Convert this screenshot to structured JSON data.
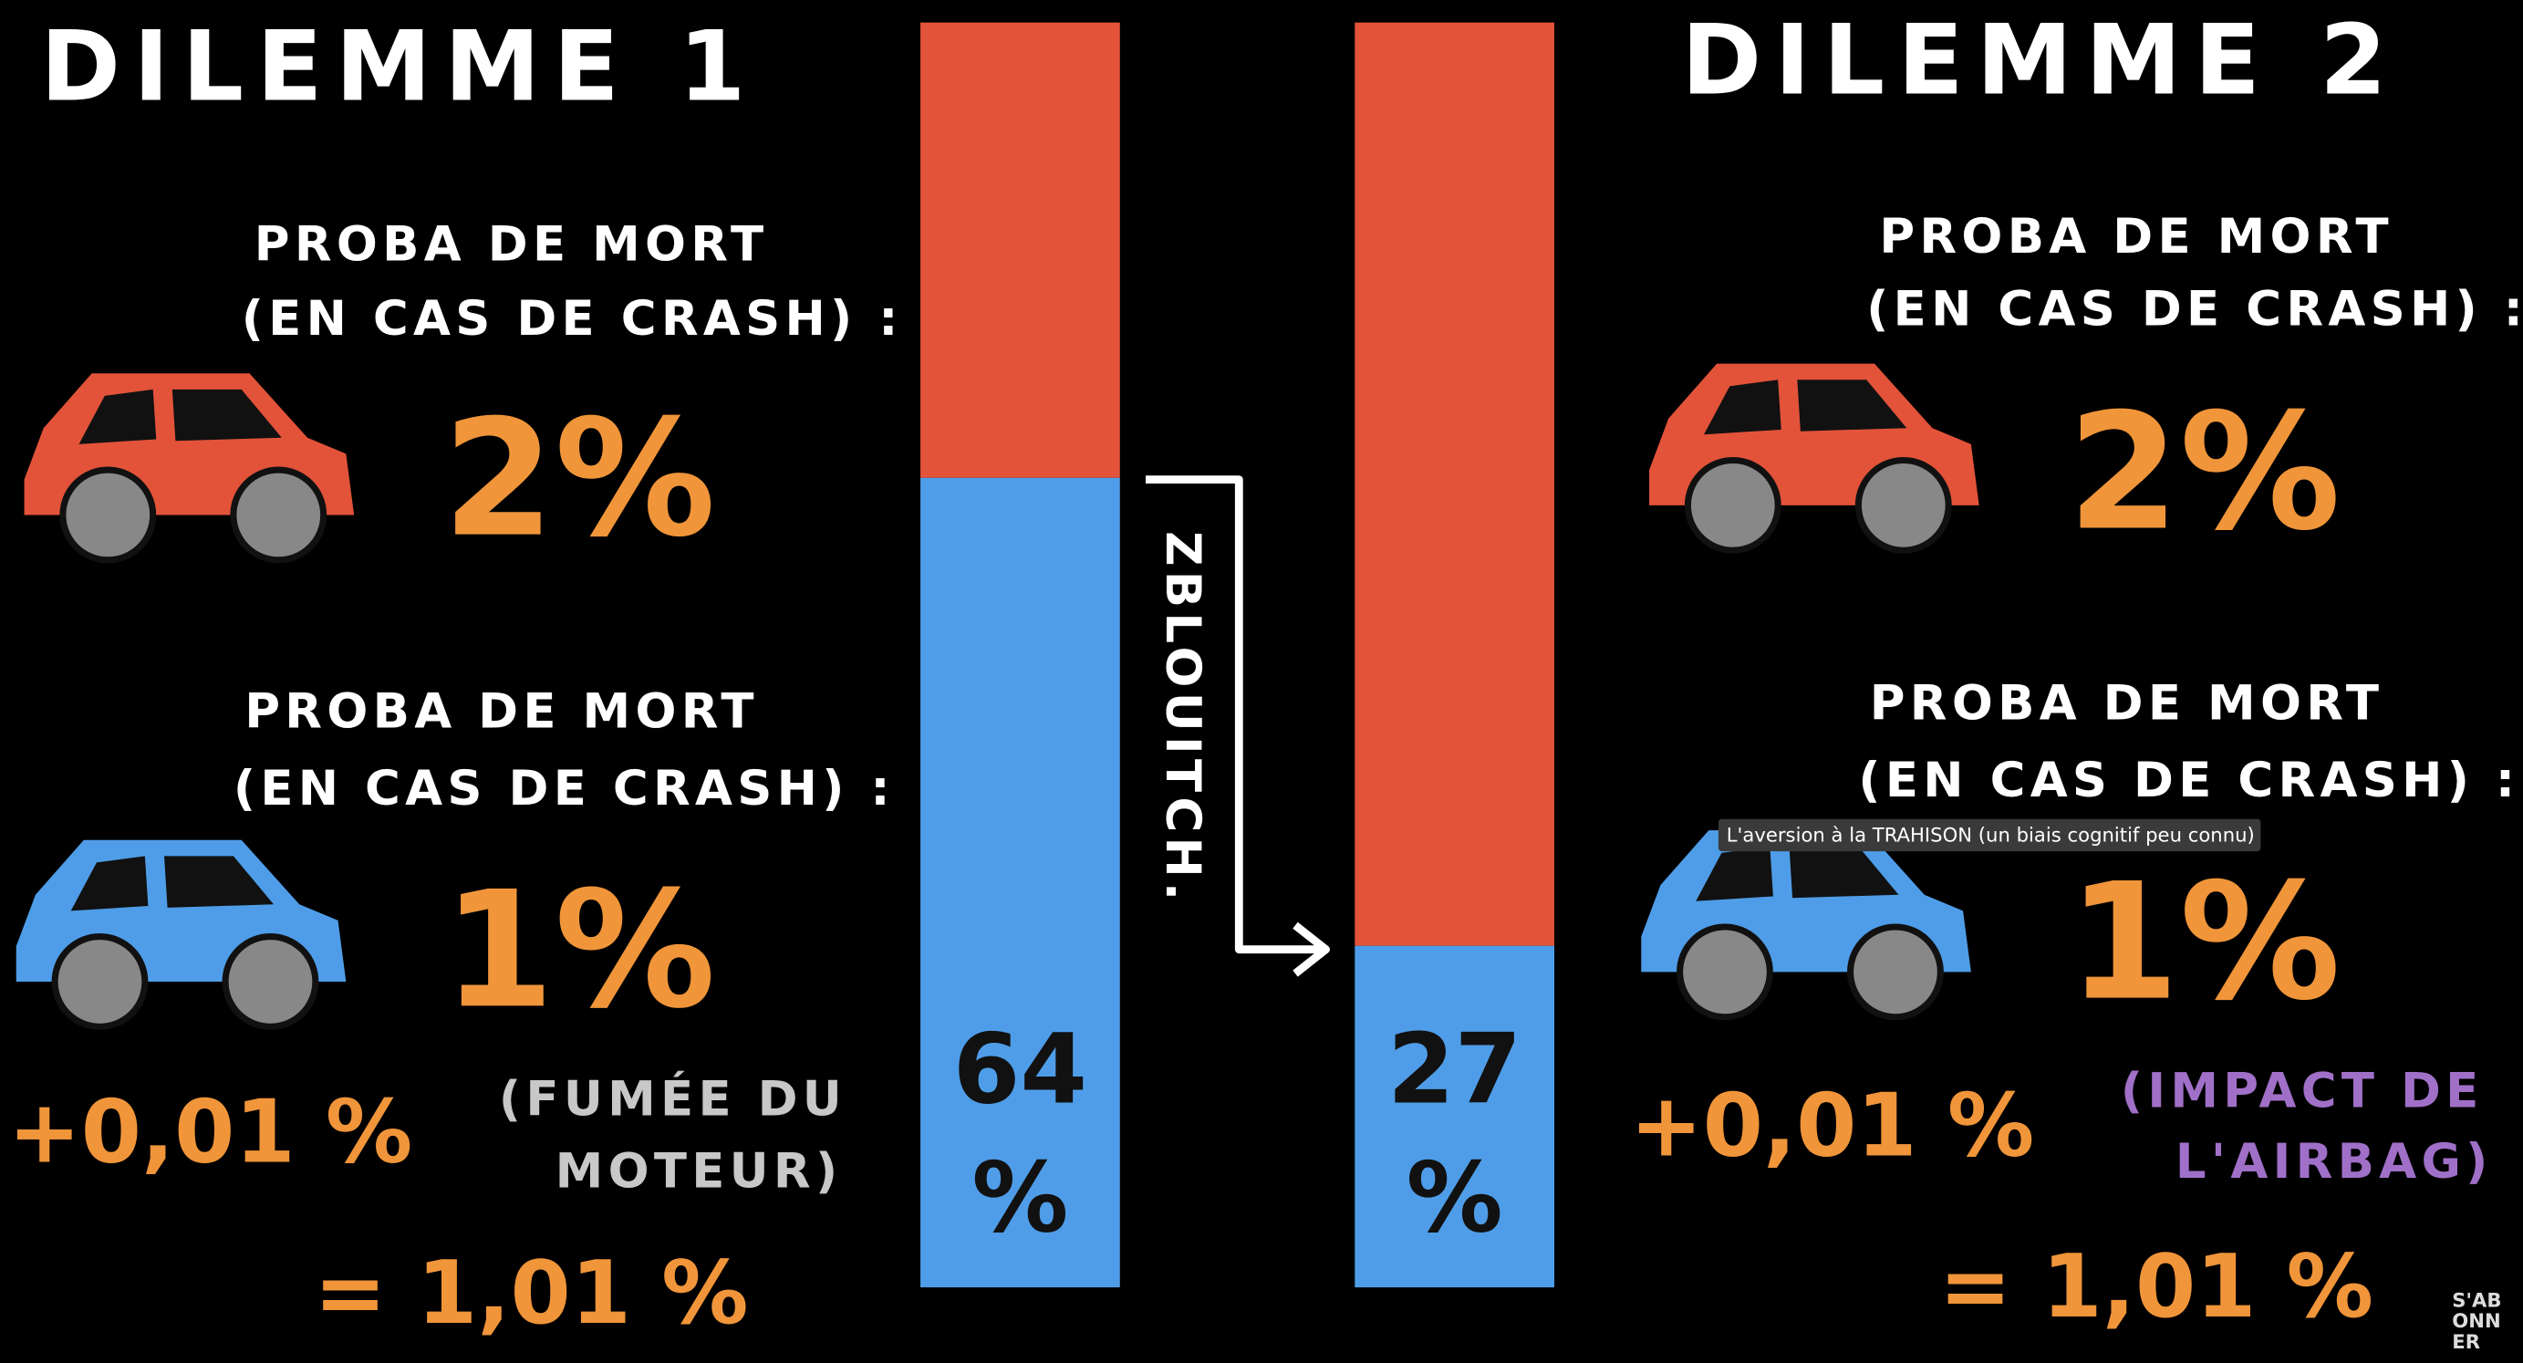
{
  "dilemma_1": {
    "title": "DILEMME 1",
    "proba_1": "PROBA DE MORT",
    "case_1": "(EN CAS DE CRASH) :",
    "value_1": "2%",
    "proba_2": "PROBA DE MORT",
    "case_2": "(EN CAS DE CRASH) :",
    "value_2": "1%",
    "addition": "+0,01 %",
    "note_line_1": "(FUMÉE DU",
    "note_line_2": "MOTEUR)",
    "total": "= 1,01 %"
  },
  "dilemma_2": {
    "title": "DILEMME 2",
    "proba_1": "PROBA DE MORT",
    "case_1": "(EN CAS DE CRASH) :",
    "value_1": "2%",
    "proba_2": "PROBA DE MORT",
    "case_2": "(EN CAS DE CRASH) :",
    "value_2": "1%",
    "addition": "+0,01 %",
    "note_line_1": "(IMPACT DE",
    "note_line_2": "L'AIRBAG)",
    "total": "= 1,01 %"
  },
  "bars": [
    {
      "value": 64,
      "unit": "%"
    },
    {
      "value": 27,
      "unit": "%"
    }
  ],
  "arrow_label": "ZBLOUITCH.",
  "tooltip": "L'aversion à la TRAHISON (un biais cognitif peu connu)",
  "watermark": [
    "S'AB",
    "ONN",
    "ER"
  ]
}
